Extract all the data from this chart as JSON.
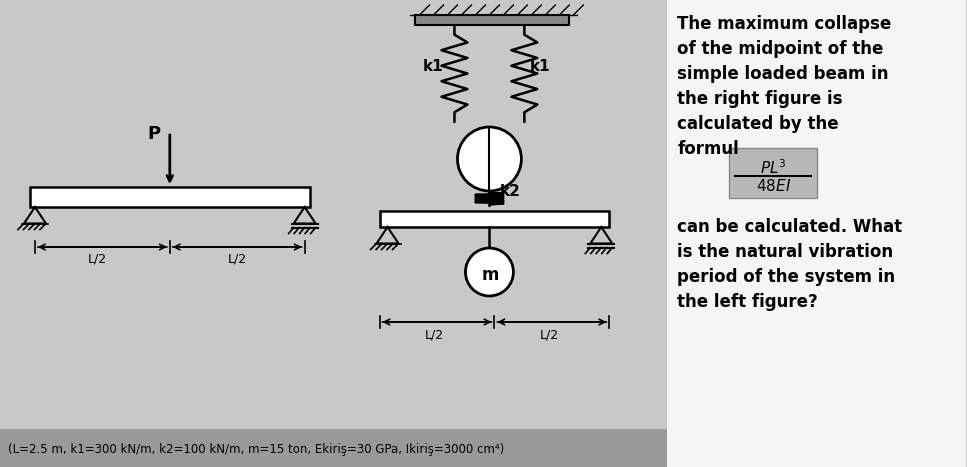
{
  "bg_color_left": "#c8c8c8",
  "bg_color_right": "#f5f5f5",
  "text_color": "#000000",
  "formula_bg": "#b8b8b8",
  "title_lines": [
    "The maximum collapse",
    "of the midpoint of the",
    "simple loaded beam in",
    "the right figure is",
    "calculated by the",
    "formul"
  ],
  "bottom_lines": [
    "can be calculated. What",
    "is the natural vibration",
    "period of the system in",
    "the left figure?"
  ],
  "param_text": "(L=2.5 m, k1=300 kN/m, k2=100 kN/m, m=15 ton, Ekiriş=30 GPa, Ikiriş=3000 cm⁴)"
}
